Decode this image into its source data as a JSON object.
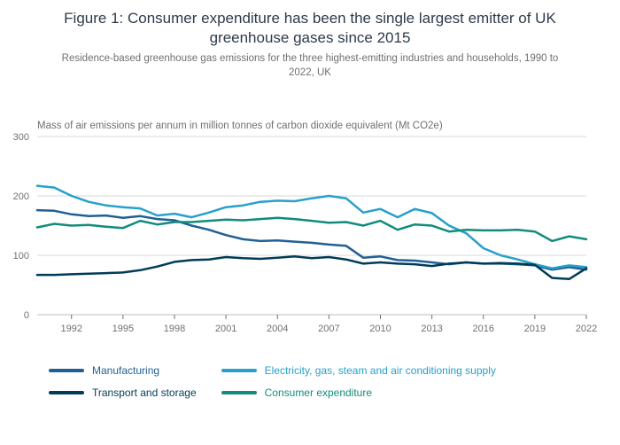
{
  "chart_data": {
    "type": "line",
    "title": "Figure 1: Consumer expenditure has been the single largest emitter of UK greenhouse gases since 2015",
    "subtitle": "Residence-based greenhouse gas emissions for the three highest-emitting industries and households, 1990 to 2022, UK",
    "axis_title": "Mass of air emissions per annum in million tonnes of carbon dioxide equivalent (Mt CO2e)",
    "x": [
      1990,
      1991,
      1992,
      1993,
      1994,
      1995,
      1996,
      1997,
      1998,
      1999,
      2000,
      2001,
      2002,
      2003,
      2004,
      2005,
      2006,
      2007,
      2008,
      2009,
      2010,
      2011,
      2012,
      2013,
      2014,
      2015,
      2016,
      2017,
      2018,
      2019,
      2020,
      2021,
      2022
    ],
    "x_ticks": [
      1992,
      1995,
      1998,
      2001,
      2004,
      2007,
      2010,
      2013,
      2016,
      2019,
      2022
    ],
    "y_ticks": [
      0,
      100,
      200,
      300
    ],
    "ylim": [
      0,
      300
    ],
    "grid": "horizontal",
    "legend_position": "bottom",
    "series": [
      {
        "name": "Manufacturing",
        "color": "#206095",
        "values": [
          176,
          175,
          169,
          166,
          167,
          163,
          166,
          161,
          159,
          150,
          143,
          134,
          127,
          124,
          125,
          123,
          121,
          118,
          116,
          96,
          98,
          92,
          91,
          88,
          85,
          88,
          86,
          86,
          85,
          83,
          76,
          80,
          76
        ]
      },
      {
        "name": "Electricity, gas, steam and air conditioning supply",
        "color": "#27A0CC",
        "values": [
          217,
          214,
          200,
          190,
          184,
          181,
          179,
          167,
          170,
          164,
          172,
          181,
          184,
          190,
          192,
          191,
          196,
          200,
          196,
          172,
          178,
          164,
          178,
          171,
          150,
          137,
          112,
          100,
          93,
          85,
          78,
          83,
          80
        ]
      },
      {
        "name": "Transport and storage",
        "color": "#003C57",
        "values": [
          67,
          67,
          68,
          69,
          70,
          71,
          75,
          81,
          89,
          92,
          93,
          97,
          95,
          94,
          96,
          98,
          95,
          97,
          93,
          86,
          88,
          86,
          85,
          82,
          86,
          88,
          86,
          87,
          86,
          84,
          62,
          60,
          78
        ]
      },
      {
        "name": "Consumer expenditure",
        "color": "#118C7B",
        "values": [
          147,
          153,
          150,
          151,
          148,
          146,
          158,
          152,
          156,
          156,
          158,
          160,
          159,
          161,
          163,
          161,
          158,
          155,
          156,
          150,
          158,
          143,
          152,
          150,
          140,
          143,
          142,
          142,
          143,
          140,
          124,
          132,
          127
        ]
      }
    ]
  },
  "colors": {
    "grid": "#d9d9d9",
    "axis": "#bfbfbf",
    "tick_text": "#707071",
    "title_text": "#2e3a4a",
    "subtitle_text": "#707071"
  }
}
